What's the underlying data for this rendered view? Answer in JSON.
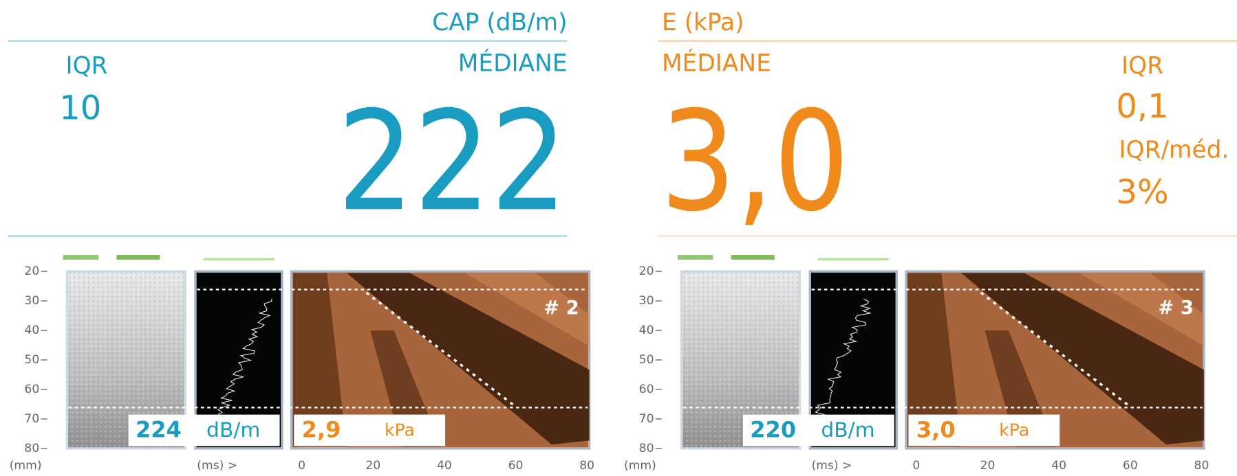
{
  "cap": {
    "title": "CAP (dB/m)",
    "iqr_label": "IQR",
    "iqr": "10",
    "median_label": "MÉDIANE",
    "median": "222"
  },
  "e": {
    "title": "E (kPa)",
    "median_label": "MÉDIANE",
    "median": "3,0",
    "iqr_label": "IQR",
    "iqr": "0,1",
    "ratio_label": "IQR/méd.",
    "ratio": "3%"
  },
  "depth_unit": "(mm)",
  "time_unit": "(ms) >",
  "depth_ticks": [
    20,
    30,
    40,
    50,
    60,
    70,
    80
  ],
  "time_ticks": [
    0,
    20,
    40,
    60,
    80
  ],
  "panels": [
    {
      "label": "# 2",
      "cap_value": "224",
      "cap_unit": "dB/m",
      "e_value": "2,9",
      "e_unit": "kPa"
    },
    {
      "label": "# 3",
      "cap_value": "220",
      "cap_unit": "dB/m",
      "e_value": "3,0",
      "e_unit": "kPa"
    }
  ]
}
